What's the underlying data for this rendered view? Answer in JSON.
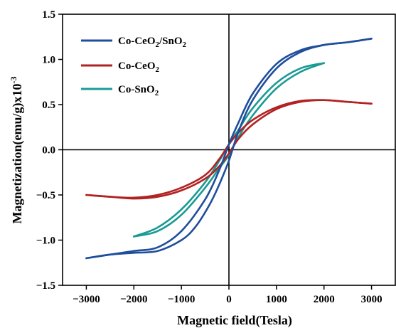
{
  "chart_data": {
    "type": "line",
    "xlabel": "Magnetic field(Tesla)",
    "ylabel": {
      "main": "Magnetization(emu/g)x10",
      "sup": "-3"
    },
    "xlim": [
      -3500,
      3500
    ],
    "ylim": [
      -1.5,
      1.5
    ],
    "x_ticks": [
      -3000,
      -2000,
      -1000,
      0,
      1000,
      2000,
      3000
    ],
    "x_tick_labels": [
      "−3000",
      "−2000",
      "−1000",
      "0",
      "1000",
      "2000",
      "3000"
    ],
    "y_ticks": [
      -1.5,
      -1.0,
      -0.5,
      0.0,
      0.5,
      1.0,
      1.5
    ],
    "y_tick_labels": [
      "−1.5",
      "−1.0",
      "−0.5",
      "0.0",
      "0.5",
      "1.0",
      "1.5"
    ],
    "crosshair_at_origin": true,
    "legend_position": "top-left",
    "series": [
      {
        "name": "Co-CeO2/SnO2",
        "legend": {
          "base1": "Co-CeO",
          "sub1": "2",
          "mid": "/SnO",
          "sub2": "2"
        },
        "color": "#1f4e9c",
        "ascending": [
          [
            -3000,
            -1.2
          ],
          [
            -2500,
            -1.16
          ],
          [
            -2000,
            -1.14
          ],
          [
            -1500,
            -1.12
          ],
          [
            -1000,
            -1.0
          ],
          [
            -700,
            -0.85
          ],
          [
            -400,
            -0.6
          ],
          [
            -200,
            -0.38
          ],
          [
            0,
            -0.12
          ],
          [
            200,
            0.2
          ],
          [
            500,
            0.55
          ],
          [
            1000,
            0.9
          ],
          [
            1500,
            1.08
          ],
          [
            2000,
            1.16
          ],
          [
            2500,
            1.19
          ],
          [
            3000,
            1.23
          ]
        ],
        "descending": [
          [
            3000,
            1.23
          ],
          [
            2500,
            1.19
          ],
          [
            2000,
            1.16
          ],
          [
            1500,
            1.1
          ],
          [
            1000,
            0.95
          ],
          [
            500,
            0.62
          ],
          [
            200,
            0.3
          ],
          [
            0,
            0.06
          ],
          [
            -200,
            -0.22
          ],
          [
            -500,
            -0.55
          ],
          [
            -1000,
            -0.9
          ],
          [
            -1500,
            -1.08
          ],
          [
            -2000,
            -1.12
          ],
          [
            -2500,
            -1.16
          ],
          [
            -3000,
            -1.2
          ]
        ]
      },
      {
        "name": "Co-CeO2",
        "legend": {
          "base1": "Co-CeO",
          "sub1": "2"
        },
        "color": "#b22222",
        "ascending": [
          [
            -3000,
            -0.5
          ],
          [
            -2500,
            -0.52
          ],
          [
            -2000,
            -0.54
          ],
          [
            -1500,
            -0.52
          ],
          [
            -1000,
            -0.45
          ],
          [
            -500,
            -0.32
          ],
          [
            -200,
            -0.18
          ],
          [
            0,
            -0.04
          ],
          [
            200,
            0.12
          ],
          [
            500,
            0.28
          ],
          [
            1000,
            0.45
          ],
          [
            1500,
            0.53
          ],
          [
            2000,
            0.55
          ],
          [
            2500,
            0.53
          ],
          [
            3000,
            0.51
          ]
        ],
        "descending": [
          [
            3000,
            0.51
          ],
          [
            2500,
            0.53
          ],
          [
            2000,
            0.55
          ],
          [
            1500,
            0.54
          ],
          [
            1000,
            0.47
          ],
          [
            500,
            0.33
          ],
          [
            200,
            0.19
          ],
          [
            0,
            0.06
          ],
          [
            -200,
            -0.1
          ],
          [
            -500,
            -0.28
          ],
          [
            -1000,
            -0.42
          ],
          [
            -1500,
            -0.5
          ],
          [
            -2000,
            -0.53
          ],
          [
            -2500,
            -0.52
          ],
          [
            -3000,
            -0.5
          ]
        ]
      },
      {
        "name": "Co-SnO2",
        "legend": {
          "base1": "Co-SnO",
          "sub1": "2"
        },
        "color": "#1a9a94",
        "ascending": [
          [
            -2000,
            -0.96
          ],
          [
            -1500,
            -0.9
          ],
          [
            -1000,
            -0.72
          ],
          [
            -500,
            -0.42
          ],
          [
            -200,
            -0.2
          ],
          [
            0,
            -0.06
          ],
          [
            200,
            0.14
          ],
          [
            500,
            0.38
          ],
          [
            1000,
            0.68
          ],
          [
            1500,
            0.86
          ],
          [
            2000,
            0.96
          ]
        ],
        "descending": [
          [
            2000,
            0.96
          ],
          [
            1500,
            0.9
          ],
          [
            1000,
            0.74
          ],
          [
            500,
            0.46
          ],
          [
            200,
            0.22
          ],
          [
            0,
            0.06
          ],
          [
            -200,
            -0.12
          ],
          [
            -500,
            -0.36
          ],
          [
            -1000,
            -0.66
          ],
          [
            -1500,
            -0.86
          ],
          [
            -2000,
            -0.96
          ]
        ]
      }
    ]
  }
}
